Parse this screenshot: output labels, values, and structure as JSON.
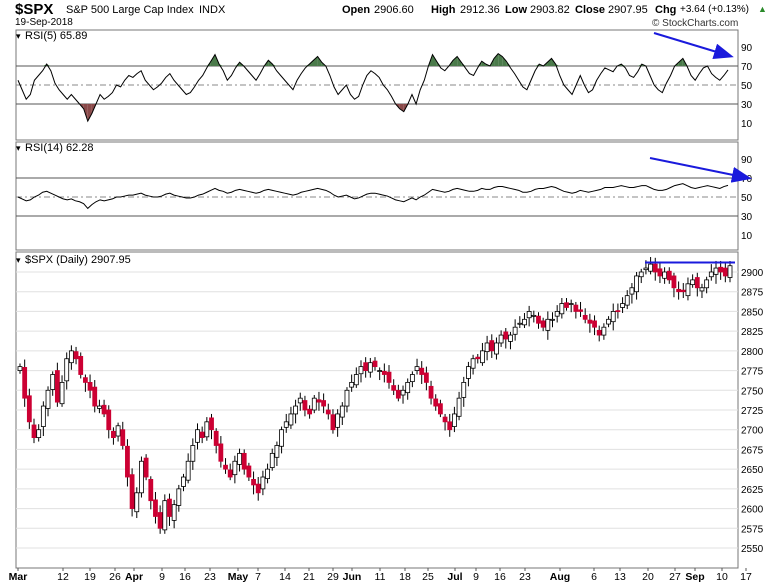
{
  "header": {
    "symbol": "$SPX",
    "name": "S&P 500 Large Cap Index",
    "exchange": "INDX",
    "date": "19-Sep-2018",
    "open_label": "Open",
    "open": "2906.60",
    "high_label": "High",
    "high": "2912.36",
    "low_label": "Low",
    "low": "2903.82",
    "close_label": "Close",
    "close": "2907.95",
    "chg_label": "Chg",
    "chg": "+3.64 (+0.13%)",
    "copyright": "© StockCharts.com"
  },
  "chart_data": [
    {
      "type": "line",
      "title": "RSI(5) 65.89",
      "ylim": [
        0,
        100
      ],
      "yticks": [
        10,
        30,
        50,
        70,
        90
      ],
      "reference_lines": [
        30,
        50,
        70
      ],
      "overbought_fill": "#4a7a4a",
      "oversold_fill": "#8a4a4a",
      "series": [
        {
          "values": [
            55,
            45,
            35,
            40,
            55,
            60,
            65,
            72,
            65,
            52,
            45,
            40,
            35,
            40,
            35,
            30,
            25,
            12,
            20,
            30,
            40,
            35,
            38,
            42,
            50,
            48,
            55,
            60,
            58,
            62,
            65,
            55,
            50,
            45,
            48,
            52,
            58,
            62,
            55,
            50,
            45,
            40,
            42,
            48,
            55,
            60,
            68,
            75,
            82,
            72,
            65,
            55,
            60,
            68,
            74,
            70,
            65,
            60,
            55,
            62,
            70,
            76,
            72,
            65,
            60,
            55,
            50,
            45,
            55,
            62,
            68,
            72,
            76,
            80,
            74,
            70,
            60,
            48,
            40,
            45,
            50,
            40,
            35,
            38,
            50,
            60,
            65,
            62,
            58,
            50,
            45,
            38,
            30,
            25,
            22,
            30,
            40,
            30,
            45,
            55,
            70,
            82,
            75,
            68,
            65,
            70,
            76,
            80,
            74,
            68,
            62,
            60,
            68,
            75,
            72,
            70,
            78,
            83,
            80,
            75,
            68,
            62,
            55,
            48,
            45,
            55,
            65,
            72,
            70,
            74,
            78,
            72,
            60,
            50,
            45,
            40,
            50,
            60,
            50,
            42,
            45,
            55,
            62,
            68,
            66,
            64,
            70,
            72,
            68,
            60,
            58,
            64,
            72,
            70,
            60,
            50,
            45,
            42,
            52,
            60,
            70,
            74,
            78,
            70,
            60,
            55,
            62,
            68,
            70,
            62,
            58,
            55,
            60,
            65.89
          ]
        }
      ],
      "arrow": "downward trend line drawn over recent peaks"
    },
    {
      "type": "line",
      "title": "RSI(14) 62.28",
      "ylim": [
        0,
        100
      ],
      "yticks": [
        10,
        30,
        50,
        70,
        90
      ],
      "reference_lines": [
        30,
        50,
        70
      ],
      "series": [
        {
          "values": [
            50,
            48,
            46,
            47,
            50,
            52,
            55,
            56,
            54,
            52,
            50,
            48,
            47,
            48,
            46,
            45,
            43,
            38,
            42,
            45,
            47,
            46,
            47,
            48,
            50,
            50,
            51,
            52,
            52,
            53,
            54,
            52,
            51,
            50,
            50,
            51,
            53,
            54,
            52,
            51,
            50,
            49,
            49,
            50,
            52,
            53,
            55,
            57,
            59,
            57,
            56,
            54,
            55,
            57,
            58,
            57,
            56,
            55,
            54,
            55,
            57,
            58,
            57,
            56,
            55,
            54,
            53,
            52,
            53,
            55,
            56,
            57,
            58,
            59,
            58,
            57,
            55,
            52,
            50,
            51,
            52,
            50,
            48,
            49,
            51,
            53,
            54,
            54,
            53,
            52,
            51,
            49,
            47,
            46,
            45,
            47,
            49,
            47,
            50,
            52,
            55,
            58,
            57,
            56,
            55,
            56,
            58,
            59,
            58,
            57,
            56,
            56,
            57,
            59,
            58,
            58,
            60,
            61,
            61,
            60,
            59,
            58,
            57,
            55,
            55,
            56,
            58,
            59,
            59,
            60,
            61,
            60,
            58,
            56,
            55,
            54,
            55,
            57,
            56,
            55,
            56,
            57,
            58,
            60,
            60,
            60,
            61,
            62,
            61,
            60,
            60,
            61,
            62,
            62,
            60,
            58,
            57,
            57,
            58,
            60,
            62,
            63,
            64,
            62,
            60,
            59,
            60,
            61,
            62,
            61,
            60,
            59,
            61,
            62.28
          ]
        }
      ],
      "arrow": "downward trend line drawn over recent peaks"
    },
    {
      "type": "candlestick",
      "title": "$SPX (Daily) 2907.95",
      "ylim": [
        2545,
        2925
      ],
      "yticks": [
        2550,
        2575,
        2600,
        2625,
        2650,
        2675,
        2700,
        2725,
        2750,
        2775,
        2800,
        2825,
        2850,
        2875,
        2900
      ],
      "x_labels": [
        "Mar",
        "12",
        "19",
        "26",
        "Apr",
        "9",
        "16",
        "23",
        "May",
        "7",
        "14",
        "21",
        "29",
        "Jun",
        "11",
        "18",
        "25",
        "Jul",
        "9",
        "16",
        "23",
        "Aug",
        "6",
        "13",
        "20",
        "27",
        "Sep",
        "10",
        "17"
      ],
      "up_color": "#ffffff",
      "down_color": "#cc0033",
      "resistance_line": 2912,
      "closes": [
        2780,
        2740,
        2710,
        2690,
        2700,
        2730,
        2750,
        2770,
        2735,
        2760,
        2790,
        2800,
        2790,
        2770,
        2760,
        2750,
        2730,
        2730,
        2720,
        2700,
        2690,
        2705,
        2680,
        2640,
        2600,
        2620,
        2660,
        2640,
        2610,
        2590,
        2575,
        2610,
        2590,
        2605,
        2625,
        2640,
        2660,
        2680,
        2700,
        2690,
        2710,
        2700,
        2680,
        2660,
        2650,
        2640,
        2660,
        2670,
        2650,
        2640,
        2630,
        2620,
        2640,
        2650,
        2670,
        2680,
        2700,
        2710,
        2720,
        2730,
        2740,
        2725,
        2720,
        2740,
        2735,
        2730,
        2720,
        2700,
        2720,
        2730,
        2750,
        2760,
        2770,
        2780,
        2775,
        2785,
        2780,
        2775,
        2770,
        2760,
        2750,
        2740,
        2750,
        2760,
        2770,
        2780,
        2770,
        2760,
        2740,
        2730,
        2720,
        2710,
        2700,
        2720,
        2740,
        2760,
        2780,
        2790,
        2790,
        2800,
        2810,
        2800,
        2810,
        2820,
        2815,
        2820,
        2830,
        2835,
        2840,
        2850,
        2845,
        2835,
        2830,
        2840,
        2840,
        2850,
        2860,
        2855,
        2860,
        2850,
        2850,
        2840,
        2835,
        2830,
        2820,
        2830,
        2840,
        2850,
        2850,
        2860,
        2870,
        2880,
        2895,
        2900,
        2905,
        2910,
        2900,
        2895,
        2900,
        2890,
        2880,
        2875,
        2875,
        2885,
        2890,
        2880,
        2880,
        2890,
        2900,
        2905,
        2900,
        2895,
        2907.95
      ]
    }
  ]
}
